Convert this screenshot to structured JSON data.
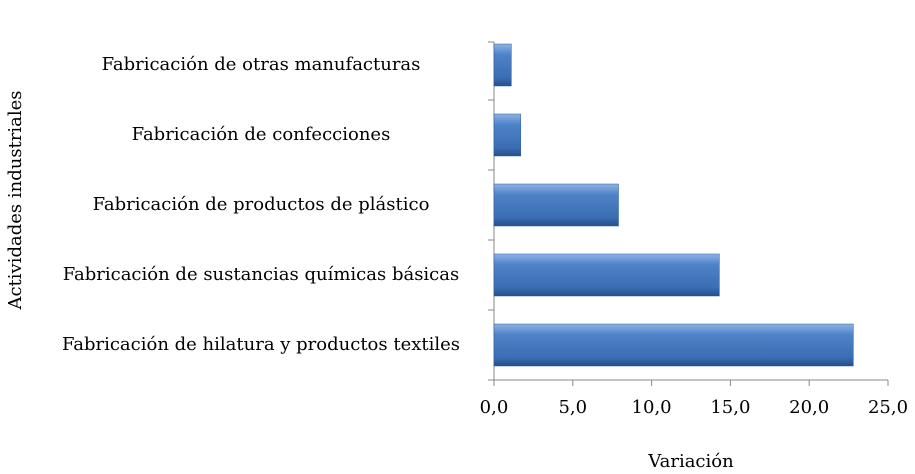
{
  "chart_data": {
    "type": "bar",
    "orientation": "horizontal",
    "categories": [
      "Fabricación de otras manufacturas",
      "Fabricación de confecciones",
      "Fabricación de productos de plástico",
      "Fabricación de sustancias químicas básicas",
      "Fabricación de hilatura y productos textiles"
    ],
    "values": [
      1.1,
      1.7,
      7.9,
      14.3,
      22.8
    ],
    "color": "#4a7ebf",
    "xlabel": "Variación",
    "ylabel": "Actividades industriales",
    "xlim": [
      0,
      25
    ],
    "xticks": [
      {
        "value": 0,
        "label": "0,0"
      },
      {
        "value": 5,
        "label": "5,0"
      },
      {
        "value": 10,
        "label": "10,0"
      },
      {
        "value": 15,
        "label": "15,0"
      },
      {
        "value": 20,
        "label": "20,0"
      },
      {
        "value": 25,
        "label": "25,0"
      }
    ]
  }
}
